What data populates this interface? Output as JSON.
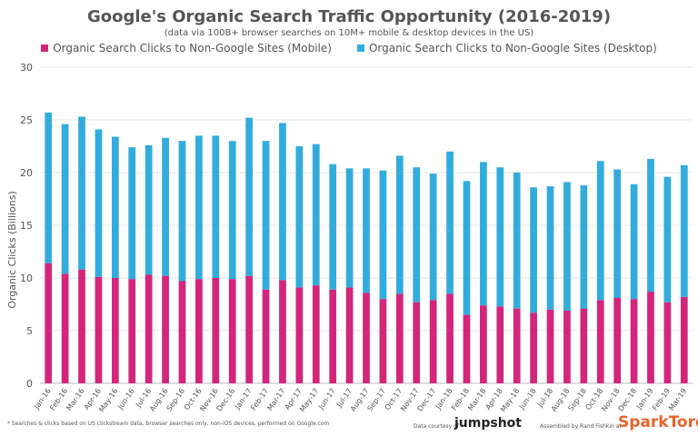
{
  "header": {
    "title": "Google's Organic Search Traffic Opportunity (2016-2019)",
    "subtitle": "(data via 100B+ browser searches on 10M+ mobile & desktop devices in the US)"
  },
  "footer": {
    "note": "* Searches & clicks based on US clickstream data, browser searches only, non-iOS devices, performed on Google.com",
    "data_credit": "Data courtesy of",
    "data_logo": "jumpshot",
    "assembled_by": "Assembled by Rand Fishkin at",
    "brand_logo": "SparkToro"
  },
  "colors": {
    "mobile": "#d3267b",
    "desktop": "#32acdc",
    "grid": "#e6e6e6",
    "text": "#555555"
  },
  "chart_data": {
    "type": "bar",
    "stacked": true,
    "ylabel": "Organic Clicks (Billions)",
    "xlabel": "",
    "ylim": [
      0,
      30
    ],
    "yticks": [
      0,
      5,
      10,
      15,
      20,
      25,
      30
    ],
    "grid": true,
    "legend_position": "top",
    "categories": [
      "Jan-16",
      "Feb-16",
      "Mar-16",
      "Apr-16",
      "May-16",
      "Jun-16",
      "Jul-16",
      "Aug-16",
      "Sep-16",
      "Oct-16",
      "Nov-16",
      "Dec-16",
      "Jan-17",
      "Feb-17",
      "Mar-17",
      "Apr-17",
      "May-17",
      "Jun-17",
      "Jul-17",
      "Aug-17",
      "Sep-17",
      "Oct-17",
      "Nov-17",
      "Dec-17",
      "Jan-18",
      "Feb-18",
      "Mar-18",
      "Apr-18",
      "May-18",
      "Jun-18",
      "Jul-18",
      "Aug-18",
      "Sep-18",
      "Oct-18",
      "Nov-18",
      "Dec-18",
      "Jan-19",
      "Feb-19",
      "Mar-19"
    ],
    "series": [
      {
        "name": "Organic Search Clicks to Non-Google Sites (Mobile)",
        "values": [
          11.4,
          10.4,
          10.8,
          10.1,
          10.0,
          9.9,
          10.3,
          10.2,
          9.7,
          9.9,
          10.0,
          9.9,
          10.2,
          8.9,
          9.8,
          9.1,
          9.3,
          8.9,
          9.1,
          8.6,
          8.0,
          8.5,
          7.7,
          7.9,
          8.5,
          6.5,
          7.4,
          7.3,
          7.1,
          6.7,
          7.0,
          6.9,
          7.1,
          7.9,
          8.1,
          8.0,
          8.7,
          7.7,
          8.2
        ]
      },
      {
        "name": "Organic Search Clicks to Non-Google Sites (Desktop)",
        "values": [
          14.3,
          14.2,
          14.5,
          14.0,
          13.4,
          12.5,
          12.3,
          13.1,
          13.3,
          13.6,
          13.5,
          13.1,
          15.0,
          14.1,
          14.9,
          13.4,
          13.4,
          11.9,
          11.3,
          11.8,
          12.2,
          13.1,
          12.8,
          12.0,
          13.5,
          12.7,
          13.6,
          13.2,
          12.9,
          11.9,
          11.7,
          12.2,
          11.7,
          13.2,
          12.2,
          10.9,
          12.6,
          11.9,
          12.5
        ]
      }
    ]
  }
}
